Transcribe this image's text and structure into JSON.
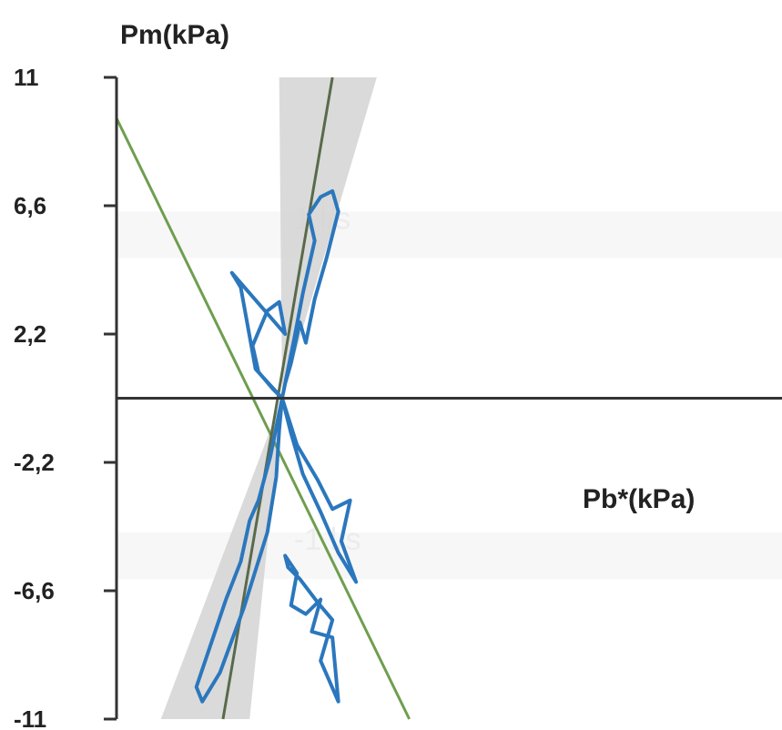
{
  "chart_data": {
    "type": "line",
    "title": "",
    "ylabel": "Pm(kPa)",
    "xlabel": "Pb*(kPa)",
    "ylim": [
      -11,
      11
    ],
    "xlim": [
      -5.5,
      17
    ],
    "yticks": [
      11,
      6.6,
      2.2,
      -2.2,
      -6.6,
      -11
    ],
    "ytick_labels": [
      "11",
      "6,6",
      "2,2",
      "-2,2",
      "-6,6",
      "-11"
    ],
    "grid": false,
    "legend": "none",
    "faint_labels": [
      {
        "text": "1 l/s",
        "x": 0.5,
        "y": 5.8
      },
      {
        "text": "-1 l/s",
        "x": 0.5,
        "y": -5.2
      }
    ],
    "reference_lines": [
      {
        "name": "",
        "color": "#6e9e4f",
        "points": [
          [
            -5.5,
            9.6
          ],
          [
            4.4,
            -11
          ]
        ]
      },
      {
        "name": "",
        "color": "#596a4a",
        "points": [
          [
            -1.9,
            -11
          ],
          [
            1.8,
            11
          ]
        ]
      }
    ],
    "confidence_band": {
      "color": "#d4d4d4",
      "polygon": [
        [
          -4.0,
          -11
        ],
        [
          -1.0,
          -11
        ],
        [
          0.1,
          0
        ],
        [
          3.3,
          11
        ],
        [
          0.0,
          11
        ],
        [
          0.1,
          0
        ]
      ]
    },
    "series": [
      {
        "name": "",
        "color": "#2b77bd",
        "x": [
          0.1,
          0.5,
          0.8,
          1.2,
          1.0,
          1.4,
          1.8,
          2.0,
          1.6,
          1.2,
          0.9,
          0.7,
          0.4,
          0.2,
          0.1
        ],
        "y": [
          0,
          2.0,
          3.6,
          5.4,
          6.3,
          6.9,
          7.1,
          6.4,
          4.8,
          3.4,
          1.9,
          2.6,
          1.2,
          0.5,
          0
        ],
        "y_back": []
      },
      {
        "name": "",
        "color": "#2b77bd",
        "x": [
          0.1,
          -0.8,
          -1.3,
          -1.6,
          0.2,
          0.0,
          -0.4,
          -0.9,
          -0.7,
          -0.2,
          0.1
        ],
        "y": [
          0,
          1.0,
          3.8,
          4.3,
          2.2,
          3.3,
          3.0,
          1.8,
          0.9,
          0.3,
          0
        ],
        "y_back": []
      },
      {
        "name": "",
        "color": "#2b77bd",
        "x": [
          0.1,
          -0.3,
          -0.7,
          -1.0,
          -1.3,
          -1.8,
          -2.2,
          -2.8,
          -2.6,
          -2.0,
          -1.2,
          -0.4,
          -0.1,
          0.0,
          0.1
        ],
        "y": [
          0,
          -2.0,
          -3.5,
          -4.2,
          -5.6,
          -6.9,
          -8.1,
          -9.9,
          -10.4,
          -9.4,
          -7.2,
          -4.6,
          -2.7,
          -1.1,
          0
        ],
        "y_back": []
      },
      {
        "name": "",
        "color": "#2b77bd",
        "x": [
          0.1,
          0.6,
          1.3,
          1.8,
          2.4,
          2.1,
          2.6,
          2.0,
          1.4,
          0.8,
          0.4,
          0.1
        ],
        "y": [
          0,
          -1.6,
          -2.8,
          -3.8,
          -3.5,
          -4.9,
          -6.3,
          -5.3,
          -3.9,
          -2.6,
          -1.2,
          0
        ],
        "y_back": []
      },
      {
        "name": "",
        "color": "#2b77bd",
        "x": [
          0.2,
          0.6,
          0.4,
          0.9,
          1.4,
          1.1,
          1.8,
          2.0,
          1.4,
          1.8,
          1.3,
          0.7,
          0.3,
          0.2
        ],
        "y": [
          -5.4,
          -6.0,
          -7.1,
          -7.4,
          -6.9,
          -8.0,
          -8.2,
          -10.4,
          -9.0,
          -7.6,
          -7.0,
          -6.2,
          -5.8,
          -5.4
        ],
        "y_back": []
      }
    ]
  }
}
